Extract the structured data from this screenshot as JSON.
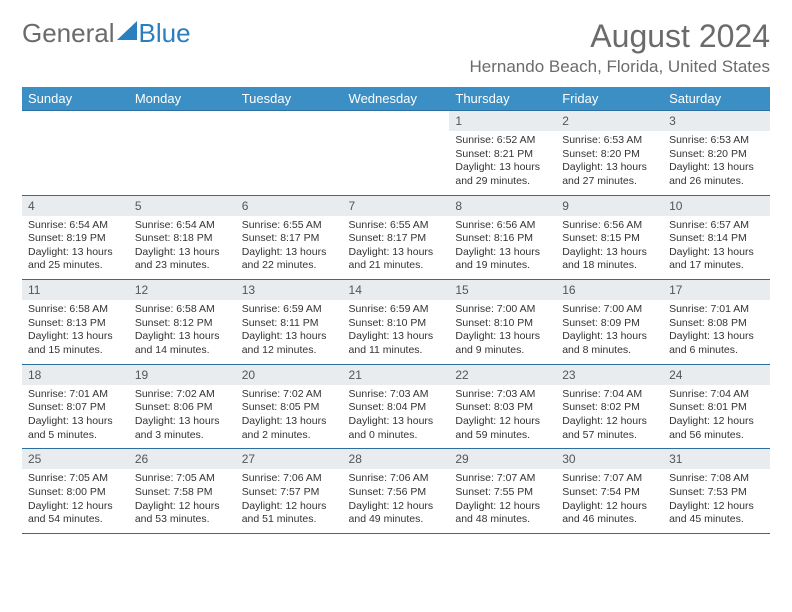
{
  "logo": {
    "text1": "General",
    "text2": "Blue"
  },
  "title": {
    "month": "August 2024",
    "location": "Hernando Beach, Florida, United States"
  },
  "colors": {
    "header_bg": "#3b8fc4",
    "header_text": "#ffffff",
    "border": "#2a6fa0",
    "daynum_bg": "#e8ecef",
    "logo_gray": "#6b6b6b",
    "logo_blue": "#2a7fbf"
  },
  "day_names": [
    "Sunday",
    "Monday",
    "Tuesday",
    "Wednesday",
    "Thursday",
    "Friday",
    "Saturday"
  ],
  "weeks": [
    [
      {
        "num": "",
        "lines": []
      },
      {
        "num": "",
        "lines": []
      },
      {
        "num": "",
        "lines": []
      },
      {
        "num": "",
        "lines": []
      },
      {
        "num": "1",
        "lines": [
          "Sunrise: 6:52 AM",
          "Sunset: 8:21 PM",
          "Daylight: 13 hours and 29 minutes."
        ]
      },
      {
        "num": "2",
        "lines": [
          "Sunrise: 6:53 AM",
          "Sunset: 8:20 PM",
          "Daylight: 13 hours and 27 minutes."
        ]
      },
      {
        "num": "3",
        "lines": [
          "Sunrise: 6:53 AM",
          "Sunset: 8:20 PM",
          "Daylight: 13 hours and 26 minutes."
        ]
      }
    ],
    [
      {
        "num": "4",
        "lines": [
          "Sunrise: 6:54 AM",
          "Sunset: 8:19 PM",
          "Daylight: 13 hours and 25 minutes."
        ]
      },
      {
        "num": "5",
        "lines": [
          "Sunrise: 6:54 AM",
          "Sunset: 8:18 PM",
          "Daylight: 13 hours and 23 minutes."
        ]
      },
      {
        "num": "6",
        "lines": [
          "Sunrise: 6:55 AM",
          "Sunset: 8:17 PM",
          "Daylight: 13 hours and 22 minutes."
        ]
      },
      {
        "num": "7",
        "lines": [
          "Sunrise: 6:55 AM",
          "Sunset: 8:17 PM",
          "Daylight: 13 hours and 21 minutes."
        ]
      },
      {
        "num": "8",
        "lines": [
          "Sunrise: 6:56 AM",
          "Sunset: 8:16 PM",
          "Daylight: 13 hours and 19 minutes."
        ]
      },
      {
        "num": "9",
        "lines": [
          "Sunrise: 6:56 AM",
          "Sunset: 8:15 PM",
          "Daylight: 13 hours and 18 minutes."
        ]
      },
      {
        "num": "10",
        "lines": [
          "Sunrise: 6:57 AM",
          "Sunset: 8:14 PM",
          "Daylight: 13 hours and 17 minutes."
        ]
      }
    ],
    [
      {
        "num": "11",
        "lines": [
          "Sunrise: 6:58 AM",
          "Sunset: 8:13 PM",
          "Daylight: 13 hours and 15 minutes."
        ]
      },
      {
        "num": "12",
        "lines": [
          "Sunrise: 6:58 AM",
          "Sunset: 8:12 PM",
          "Daylight: 13 hours and 14 minutes."
        ]
      },
      {
        "num": "13",
        "lines": [
          "Sunrise: 6:59 AM",
          "Sunset: 8:11 PM",
          "Daylight: 13 hours and 12 minutes."
        ]
      },
      {
        "num": "14",
        "lines": [
          "Sunrise: 6:59 AM",
          "Sunset: 8:10 PM",
          "Daylight: 13 hours and 11 minutes."
        ]
      },
      {
        "num": "15",
        "lines": [
          "Sunrise: 7:00 AM",
          "Sunset: 8:10 PM",
          "Daylight: 13 hours and 9 minutes."
        ]
      },
      {
        "num": "16",
        "lines": [
          "Sunrise: 7:00 AM",
          "Sunset: 8:09 PM",
          "Daylight: 13 hours and 8 minutes."
        ]
      },
      {
        "num": "17",
        "lines": [
          "Sunrise: 7:01 AM",
          "Sunset: 8:08 PM",
          "Daylight: 13 hours and 6 minutes."
        ]
      }
    ],
    [
      {
        "num": "18",
        "lines": [
          "Sunrise: 7:01 AM",
          "Sunset: 8:07 PM",
          "Daylight: 13 hours and 5 minutes."
        ]
      },
      {
        "num": "19",
        "lines": [
          "Sunrise: 7:02 AM",
          "Sunset: 8:06 PM",
          "Daylight: 13 hours and 3 minutes."
        ]
      },
      {
        "num": "20",
        "lines": [
          "Sunrise: 7:02 AM",
          "Sunset: 8:05 PM",
          "Daylight: 13 hours and 2 minutes."
        ]
      },
      {
        "num": "21",
        "lines": [
          "Sunrise: 7:03 AM",
          "Sunset: 8:04 PM",
          "Daylight: 13 hours and 0 minutes."
        ]
      },
      {
        "num": "22",
        "lines": [
          "Sunrise: 7:03 AM",
          "Sunset: 8:03 PM",
          "Daylight: 12 hours and 59 minutes."
        ]
      },
      {
        "num": "23",
        "lines": [
          "Sunrise: 7:04 AM",
          "Sunset: 8:02 PM",
          "Daylight: 12 hours and 57 minutes."
        ]
      },
      {
        "num": "24",
        "lines": [
          "Sunrise: 7:04 AM",
          "Sunset: 8:01 PM",
          "Daylight: 12 hours and 56 minutes."
        ]
      }
    ],
    [
      {
        "num": "25",
        "lines": [
          "Sunrise: 7:05 AM",
          "Sunset: 8:00 PM",
          "Daylight: 12 hours and 54 minutes."
        ]
      },
      {
        "num": "26",
        "lines": [
          "Sunrise: 7:05 AM",
          "Sunset: 7:58 PM",
          "Daylight: 12 hours and 53 minutes."
        ]
      },
      {
        "num": "27",
        "lines": [
          "Sunrise: 7:06 AM",
          "Sunset: 7:57 PM",
          "Daylight: 12 hours and 51 minutes."
        ]
      },
      {
        "num": "28",
        "lines": [
          "Sunrise: 7:06 AM",
          "Sunset: 7:56 PM",
          "Daylight: 12 hours and 49 minutes."
        ]
      },
      {
        "num": "29",
        "lines": [
          "Sunrise: 7:07 AM",
          "Sunset: 7:55 PM",
          "Daylight: 12 hours and 48 minutes."
        ]
      },
      {
        "num": "30",
        "lines": [
          "Sunrise: 7:07 AM",
          "Sunset: 7:54 PM",
          "Daylight: 12 hours and 46 minutes."
        ]
      },
      {
        "num": "31",
        "lines": [
          "Sunrise: 7:08 AM",
          "Sunset: 7:53 PM",
          "Daylight: 12 hours and 45 minutes."
        ]
      }
    ]
  ]
}
